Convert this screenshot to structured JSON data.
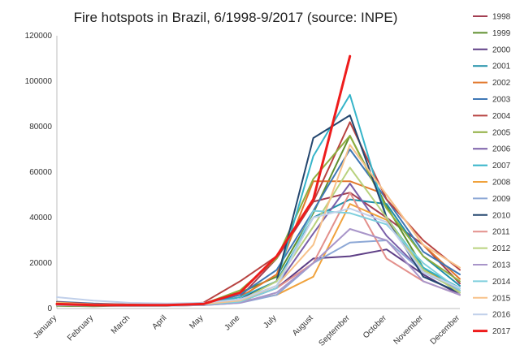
{
  "chart_data": {
    "type": "line",
    "title": "Fire hotspots in Brazil, 6/1998-9/2017 (source: INPE)",
    "xlabel": "",
    "ylabel": "",
    "ylim": [
      0,
      120000
    ],
    "yticks": [
      "0",
      "20000",
      "40000",
      "60000",
      "80000",
      "100000",
      "120000"
    ],
    "categories": [
      "January",
      "February",
      "March",
      "April",
      "May",
      "June",
      "July",
      "August",
      "September",
      "October",
      "November",
      "December"
    ],
    "legend_position": "right",
    "grid": false,
    "series": [
      {
        "name": "1998",
        "color": "#a33f52",
        "values": [
          null,
          null,
          null,
          null,
          null,
          5000,
          22000,
          47000,
          51000,
          40000,
          28000,
          11000
        ]
      },
      {
        "name": "1999",
        "color": "#5f8f2e",
        "values": [
          1200,
          1000,
          1300,
          1500,
          2000,
          7000,
          14000,
          42000,
          76000,
          45000,
          18000,
          7000
        ]
      },
      {
        "name": "2000",
        "color": "#5e3f86",
        "values": [
          1500,
          1300,
          1400,
          1500,
          1800,
          3000,
          9000,
          22000,
          23000,
          26000,
          15000,
          6000
        ]
      },
      {
        "name": "2001",
        "color": "#1f8fa8",
        "values": [
          2000,
          1800,
          1600,
          1500,
          2000,
          4000,
          12000,
          40000,
          48000,
          46000,
          23000,
          10000
        ]
      },
      {
        "name": "2002",
        "color": "#e2782c",
        "values": [
          2500,
          1800,
          1600,
          1500,
          2200,
          5000,
          15000,
          56000,
          56000,
          50000,
          28000,
          13000
        ]
      },
      {
        "name": "2003",
        "color": "#3f77b5",
        "values": [
          3000,
          2200,
          1800,
          1700,
          2000,
          6000,
          17000,
          43000,
          70000,
          48000,
          25000,
          15000
        ]
      },
      {
        "name": "2004",
        "color": "#b84341",
        "values": [
          2800,
          2000,
          1800,
          1600,
          2600,
          12000,
          23000,
          47000,
          82000,
          48000,
          30000,
          17000
        ]
      },
      {
        "name": "2005",
        "color": "#8fae3f",
        "values": [
          2600,
          1800,
          1700,
          1600,
          2000,
          8000,
          22000,
          57000,
          76000,
          44000,
          23000,
          12000
        ]
      },
      {
        "name": "2006",
        "color": "#7a5fa8",
        "values": [
          2000,
          1500,
          1400,
          1300,
          1800,
          4000,
          10000,
          33000,
          55000,
          32000,
          16000,
          9000
        ]
      },
      {
        "name": "2007",
        "color": "#35b4c9",
        "values": [
          1800,
          1500,
          1400,
          1400,
          2000,
          5000,
          12000,
          67000,
          94000,
          40000,
          18000,
          9000
        ]
      },
      {
        "name": "2008",
        "color": "#f0a23c",
        "values": [
          1500,
          1300,
          1200,
          1200,
          1500,
          3000,
          6000,
          14000,
          46000,
          39000,
          17000,
          8000
        ]
      },
      {
        "name": "2009",
        "color": "#8da8d6",
        "values": [
          1500,
          1300,
          1200,
          1200,
          1500,
          2500,
          6000,
          20000,
          29000,
          30000,
          16000,
          8000
        ]
      },
      {
        "name": "2010",
        "color": "#24476f",
        "values": [
          2000,
          1500,
          1400,
          1300,
          1800,
          4000,
          12000,
          75000,
          85000,
          40000,
          14000,
          7000
        ]
      },
      {
        "name": "2011",
        "color": "#e3908c",
        "values": [
          1500,
          1200,
          1100,
          1200,
          1500,
          3000,
          9000,
          20000,
          51000,
          22000,
          12000,
          6000
        ]
      },
      {
        "name": "2012",
        "color": "#b9d27e",
        "values": [
          1500,
          1300,
          1200,
          1200,
          1600,
          3500,
          12000,
          36000,
          62000,
          40000,
          17000,
          7000
        ]
      },
      {
        "name": "2013",
        "color": "#a895c9",
        "values": [
          1500,
          1300,
          1200,
          1200,
          1500,
          2500,
          7000,
          20000,
          35000,
          30000,
          12000,
          6000
        ]
      },
      {
        "name": "2014",
        "color": "#7fcfdd",
        "values": [
          1800,
          1500,
          1300,
          1300,
          1700,
          3000,
          9000,
          43000,
          42000,
          37000,
          20000,
          8000
        ]
      },
      {
        "name": "2015",
        "color": "#f7c28a",
        "values": [
          2500,
          1800,
          1600,
          1500,
          2000,
          3500,
          10000,
          28000,
          72000,
          50000,
          28000,
          18000
        ]
      },
      {
        "name": "2016",
        "color": "#c1d0ea",
        "values": [
          5000,
          3500,
          2500,
          2200,
          2500,
          4000,
          10000,
          40000,
          44000,
          38000,
          16000,
          9000
        ]
      },
      {
        "name": "2017",
        "color": "#ee1c1c",
        "values": [
          2000,
          1500,
          1500,
          1500,
          2000,
          7000,
          23000,
          48000,
          111000,
          null,
          null,
          null
        ]
      }
    ]
  }
}
